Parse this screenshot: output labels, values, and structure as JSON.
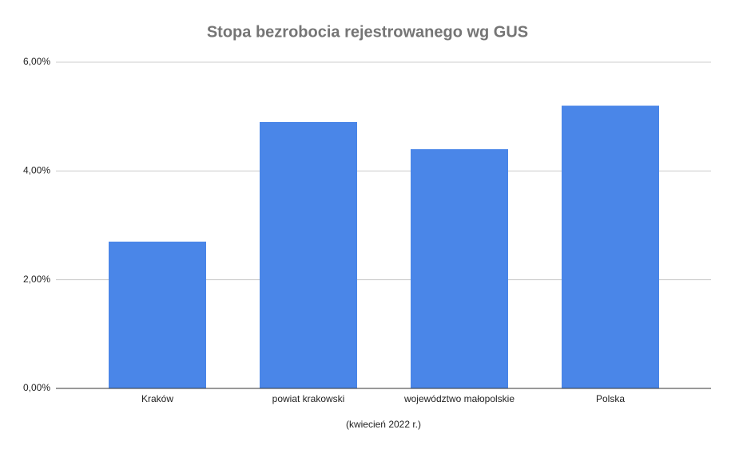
{
  "chart_data": {
    "type": "bar",
    "title": "Stopa bezrobocia rejestrowanego wg GUS",
    "x_label": "(kwiecień 2022 r.)",
    "categories": [
      "Kraków",
      "powiat krakowski",
      "województwo małopolskie",
      "Polska"
    ],
    "values": [
      2.7,
      4.9,
      4.4,
      5.2
    ],
    "color": "#4a86e8",
    "ylim": [
      0,
      6
    ],
    "yticks": [
      {
        "value": 0,
        "label": "0,00%"
      },
      {
        "value": 2,
        "label": "2,00%"
      },
      {
        "value": 4,
        "label": "4,00%"
      },
      {
        "value": 6,
        "label": "6,00%"
      }
    ],
    "grid": true
  }
}
